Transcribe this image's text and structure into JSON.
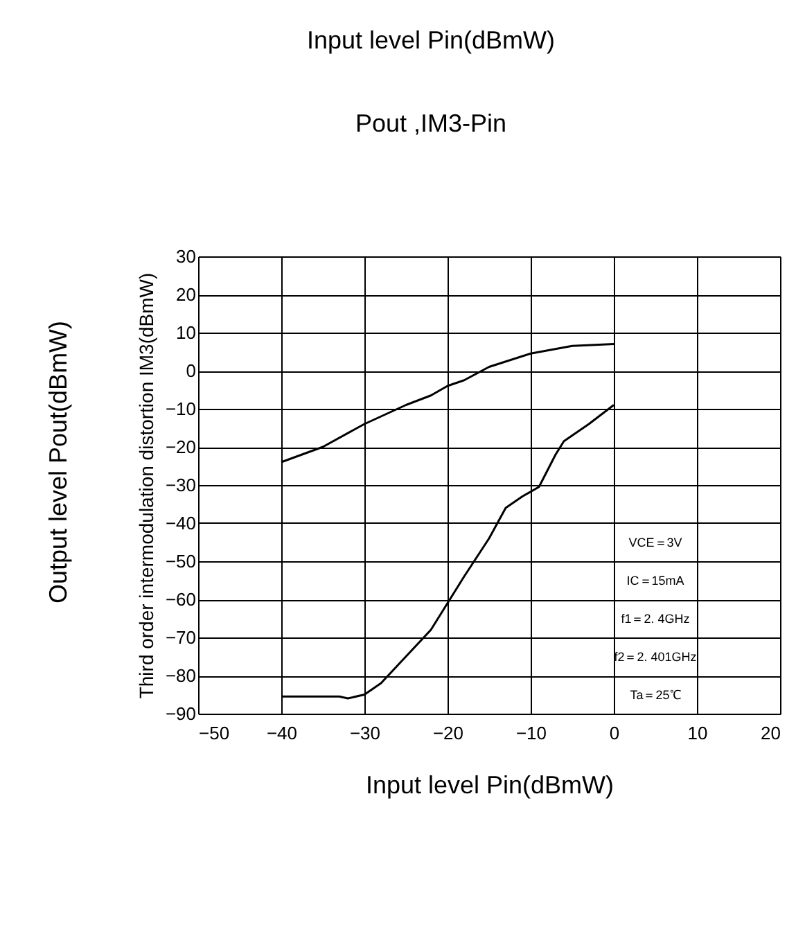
{
  "chart_data": {
    "type": "line",
    "title": "Pout ,IM3-Pin",
    "xlabel": "Input level Pin(dBmW)",
    "ylabel": "Third order intermodulation distortion IM3(dBmW)",
    "annotations": [
      "Input level Pin(dBmW)",
      "Output level Pout(dBmW)",
      "VCE＝3V",
      "IC＝15mA",
      "f1＝2. 4GHz",
      "f2＝2. 401GHz",
      "Ta＝25℃"
    ],
    "series": [
      {
        "color": "#000000",
        "x": [
          -40,
          -35,
          -30,
          -25,
          -22,
          -20,
          -18,
          -15,
          -10,
          -5,
          0
        ],
        "values": [
          -24,
          -20,
          -14,
          -9,
          -6.5,
          -4,
          -2.5,
          1,
          4.5,
          6.5,
          7
        ]
      },
      {
        "color": "#000000",
        "x": [
          -40,
          -33,
          -32,
          -30,
          -28,
          -25,
          -22,
          -20,
          -18,
          -15,
          -13,
          -11,
          -9,
          -7,
          -6,
          -3,
          0
        ],
        "values": [
          -85.5,
          -85.5,
          -86,
          -85,
          -82,
          -75,
          -68,
          -61,
          -54,
          -44,
          -36,
          -33,
          -30.5,
          -22,
          -18.5,
          -14,
          -9
        ]
      }
    ],
    "xlim": [
      -50,
      20
    ],
    "xticks": [
      -50,
      -40,
      -30,
      -20,
      -10,
      0,
      10,
      20
    ],
    "ylim": [
      -90,
      30
    ],
    "yticks": [
      -90,
      -80,
      -70,
      -60,
      -50,
      -40,
      -30,
      -20,
      -10,
      0,
      10,
      20,
      30
    ],
    "grid": true,
    "marker": "none",
    "line_style": "solid"
  }
}
